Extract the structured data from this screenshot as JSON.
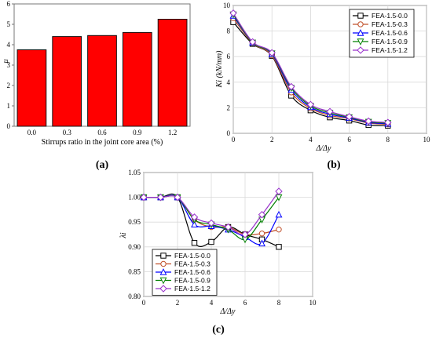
{
  "chart_data": [
    {
      "type": "bar",
      "panel_label": "(a)",
      "categories": [
        "0.0",
        "0.3",
        "0.6",
        "0.9",
        "1.2"
      ],
      "values": [
        3.75,
        4.4,
        4.45,
        4.6,
        5.25
      ],
      "xlabel": "Stirrups ratio in the joint core area (%)",
      "ylabel": "μ",
      "ylim": [
        0,
        6
      ],
      "yticks": [
        "0",
        "1",
        "2",
        "3",
        "4",
        "5",
        "6"
      ],
      "bar_color": "#ff0000",
      "grid": false
    },
    {
      "type": "line",
      "panel_label": "(b)",
      "xlabel": "Δ/Δy",
      "ylabel": "Ki (kN/mm)",
      "xlim": [
        0,
        10
      ],
      "ylim": [
        0,
        10
      ],
      "xticks": [
        "0",
        "2",
        "4",
        "6",
        "8",
        "10"
      ],
      "yticks": [
        "0",
        "2",
        "4",
        "6",
        "8",
        "10"
      ],
      "legend_position": "top-right",
      "x": [
        0,
        1,
        2,
        3,
        4,
        5,
        6,
        7,
        8
      ],
      "series": [
        {
          "name": "FEA-1.5-0.0",
          "color": "#000000",
          "marker": "square",
          "values": [
            8.7,
            7.0,
            6.05,
            2.95,
            1.8,
            1.25,
            1.0,
            0.65,
            0.6
          ]
        },
        {
          "name": "FEA-1.5-0.3",
          "color": "#c0502a",
          "marker": "circle",
          "values": [
            9.0,
            7.05,
            6.1,
            3.2,
            1.95,
            1.4,
            1.15,
            0.8,
            0.7
          ]
        },
        {
          "name": "FEA-1.5-0.6",
          "color": "#0000ff",
          "marker": "triangle-up",
          "values": [
            9.2,
            7.1,
            6.2,
            3.4,
            2.05,
            1.5,
            1.2,
            0.85,
            0.75
          ]
        },
        {
          "name": "FEA-1.5-0.9",
          "color": "#008000",
          "marker": "triangle-down",
          "values": [
            9.3,
            7.1,
            6.25,
            3.55,
            2.15,
            1.6,
            1.25,
            0.9,
            0.8
          ]
        },
        {
          "name": "FEA-1.5-1.2",
          "color": "#9932cc",
          "marker": "diamond",
          "values": [
            9.4,
            7.15,
            6.3,
            3.65,
            2.25,
            1.7,
            1.3,
            0.95,
            0.85
          ]
        }
      ]
    },
    {
      "type": "line",
      "panel_label": "(c)",
      "xlabel": "Δ/Δy",
      "ylabel": "λi",
      "xlim": [
        0,
        10
      ],
      "ylim": [
        0.8,
        1.05
      ],
      "xticks": [
        "0",
        "2",
        "4",
        "6",
        "8",
        "10"
      ],
      "yticks": [
        "0.80",
        "0.85",
        "0.90",
        "0.95",
        "1.00",
        "1.05"
      ],
      "legend_position": "bottom-right",
      "x": [
        0,
        1,
        2,
        3,
        4,
        5,
        6,
        7,
        8
      ],
      "series": [
        {
          "name": "FEA-1.5-0.0",
          "color": "#000000",
          "marker": "square",
          "values": [
            1.0,
            1.0,
            1.0,
            0.908,
            0.91,
            0.94,
            0.925,
            0.915,
            0.9
          ]
        },
        {
          "name": "FEA-1.5-0.3",
          "color": "#c0502a",
          "marker": "circle",
          "values": [
            1.0,
            1.0,
            1.0,
            0.955,
            0.94,
            0.94,
            0.925,
            0.927,
            0.935
          ]
        },
        {
          "name": "FEA-1.5-0.6",
          "color": "#0000ff",
          "marker": "triangle-up",
          "values": [
            1.0,
            1.0,
            1.0,
            0.945,
            0.942,
            0.935,
            0.92,
            0.907,
            0.965
          ]
        },
        {
          "name": "FEA-1.5-0.9",
          "color": "#008000",
          "marker": "triangle-down",
          "values": [
            1.0,
            1.0,
            1.0,
            0.955,
            0.945,
            0.935,
            0.915,
            0.955,
            1.0
          ]
        },
        {
          "name": "FEA-1.5-1.2",
          "color": "#9932cc",
          "marker": "diamond",
          "values": [
            1.0,
            1.0,
            1.0,
            0.96,
            0.948,
            0.94,
            0.925,
            0.965,
            1.012
          ]
        }
      ]
    }
  ]
}
